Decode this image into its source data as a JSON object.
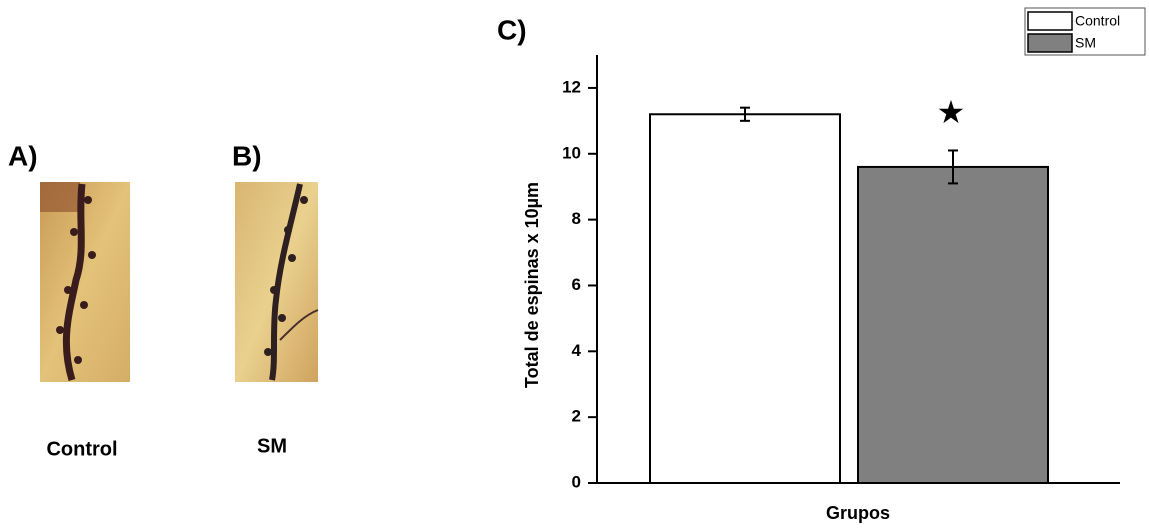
{
  "panels": {
    "a": "A)",
    "b": "B)",
    "c": "C)"
  },
  "images": [
    {
      "caption": "Control"
    },
    {
      "caption": "SM"
    }
  ],
  "chart_data": {
    "type": "bar",
    "categories": [
      null
    ],
    "xlabel": "Grupos",
    "ylabel": "Total de espinas x 10µm",
    "series": [
      {
        "name": "Control",
        "color": "#ffffff",
        "values": [
          11.2
        ],
        "errors": [
          0.2
        ]
      },
      {
        "name": "SM",
        "color": "#808080",
        "values": [
          9.6
        ],
        "errors": [
          0.5
        ]
      }
    ],
    "ylim": [
      0,
      13
    ],
    "yticks": [
      0,
      2,
      4,
      6,
      8,
      10,
      12
    ],
    "annotations": [
      "★"
    ],
    "legend": "upper right"
  }
}
